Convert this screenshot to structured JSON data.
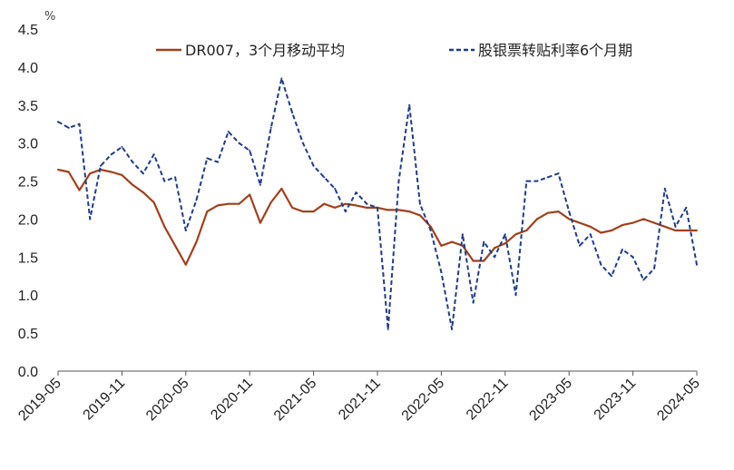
{
  "chart_data": {
    "type": "line",
    "y_unit": "%",
    "ylim": [
      0,
      4.5
    ],
    "y_ticks": [
      "0.0",
      "0.5",
      "1.0",
      "1.5",
      "2.0",
      "2.5",
      "3.0",
      "3.5",
      "4.0",
      "4.5"
    ],
    "x_ticks": [
      "2019-05",
      "2019-11",
      "2020-05",
      "2020-11",
      "2021-05",
      "2021-11",
      "2022-05",
      "2022-11",
      "2023-05",
      "2023-11",
      "2024-05"
    ],
    "xlim": [
      "2019-05",
      "2024-05"
    ],
    "grid": false,
    "legend_position": "top",
    "series": [
      {
        "name": "DR007，3个月移动平均",
        "color": "#a0401b",
        "style": "solid",
        "points": [
          [
            "2019-05",
            2.65
          ],
          [
            "2019-06",
            2.62
          ],
          [
            "2019-07",
            2.38
          ],
          [
            "2019-08",
            2.6
          ],
          [
            "2019-09",
            2.65
          ],
          [
            "2019-10",
            2.62
          ],
          [
            "2019-11",
            2.58
          ],
          [
            "2019-12",
            2.45
          ],
          [
            "2020-01",
            2.35
          ],
          [
            "2020-02",
            2.22
          ],
          [
            "2020-03",
            1.9
          ],
          [
            "2020-04",
            1.65
          ],
          [
            "2020-05",
            1.4
          ],
          [
            "2020-06",
            1.7
          ],
          [
            "2020-07",
            2.1
          ],
          [
            "2020-08",
            2.18
          ],
          [
            "2020-09",
            2.2
          ],
          [
            "2020-10",
            2.2
          ],
          [
            "2020-11",
            2.32
          ],
          [
            "2020-12",
            1.95
          ],
          [
            "2021-01",
            2.22
          ],
          [
            "2021-02",
            2.4
          ],
          [
            "2021-03",
            2.15
          ],
          [
            "2021-04",
            2.1
          ],
          [
            "2021-05",
            2.1
          ],
          [
            "2021-06",
            2.2
          ],
          [
            "2021-07",
            2.15
          ],
          [
            "2021-08",
            2.2
          ],
          [
            "2021-09",
            2.18
          ],
          [
            "2021-10",
            2.15
          ],
          [
            "2021-11",
            2.15
          ],
          [
            "2021-12",
            2.12
          ],
          [
            "2022-01",
            2.12
          ],
          [
            "2022-02",
            2.1
          ],
          [
            "2022-03",
            2.05
          ],
          [
            "2022-04",
            1.9
          ],
          [
            "2022-05",
            1.65
          ],
          [
            "2022-06",
            1.7
          ],
          [
            "2022-07",
            1.65
          ],
          [
            "2022-08",
            1.45
          ],
          [
            "2022-09",
            1.45
          ],
          [
            "2022-10",
            1.62
          ],
          [
            "2022-11",
            1.68
          ],
          [
            "2022-12",
            1.8
          ],
          [
            "2023-01",
            1.85
          ],
          [
            "2023-02",
            2.0
          ],
          [
            "2023-03",
            2.08
          ],
          [
            "2023-04",
            2.1
          ],
          [
            "2023-05",
            2.0
          ],
          [
            "2023-06",
            1.95
          ],
          [
            "2023-07",
            1.9
          ],
          [
            "2023-08",
            1.82
          ],
          [
            "2023-09",
            1.85
          ],
          [
            "2023-10",
            1.92
          ],
          [
            "2023-11",
            1.95
          ],
          [
            "2023-12",
            2.0
          ],
          [
            "2024-01",
            1.95
          ],
          [
            "2024-02",
            1.9
          ],
          [
            "2024-03",
            1.85
          ],
          [
            "2024-04",
            1.85
          ],
          [
            "2024-05",
            1.85
          ]
        ]
      },
      {
        "name": "股银票转贴利率6个月期",
        "color": "#1f3c88",
        "style": "dashed",
        "points": [
          [
            "2019-05",
            3.28
          ],
          [
            "2019-06",
            3.2
          ],
          [
            "2019-07",
            3.25
          ],
          [
            "2019-08",
            2.0
          ],
          [
            "2019-09",
            2.7
          ],
          [
            "2019-10",
            2.85
          ],
          [
            "2019-11",
            2.95
          ],
          [
            "2019-12",
            2.75
          ],
          [
            "2020-01",
            2.6
          ],
          [
            "2020-02",
            2.85
          ],
          [
            "2020-03",
            2.5
          ],
          [
            "2020-04",
            2.55
          ],
          [
            "2020-05",
            1.85
          ],
          [
            "2020-06",
            2.25
          ],
          [
            "2020-07",
            2.8
          ],
          [
            "2020-08",
            2.75
          ],
          [
            "2020-09",
            3.15
          ],
          [
            "2020-10",
            3.0
          ],
          [
            "2020-11",
            2.9
          ],
          [
            "2020-12",
            2.45
          ],
          [
            "2021-01",
            3.2
          ],
          [
            "2021-02",
            3.85
          ],
          [
            "2021-03",
            3.4
          ],
          [
            "2021-04",
            3.0
          ],
          [
            "2021-05",
            2.7
          ],
          [
            "2021-06",
            2.55
          ],
          [
            "2021-07",
            2.4
          ],
          [
            "2021-08",
            2.1
          ],
          [
            "2021-09",
            2.35
          ],
          [
            "2021-10",
            2.2
          ],
          [
            "2021-11",
            2.15
          ],
          [
            "2021-12",
            0.55
          ],
          [
            "2022-01",
            2.5
          ],
          [
            "2022-02",
            3.5
          ],
          [
            "2022-03",
            2.2
          ],
          [
            "2022-04",
            1.85
          ],
          [
            "2022-05",
            1.3
          ],
          [
            "2022-06",
            0.55
          ],
          [
            "2022-07",
            1.8
          ],
          [
            "2022-08",
            0.9
          ],
          [
            "2022-09",
            1.7
          ],
          [
            "2022-10",
            1.5
          ],
          [
            "2022-11",
            1.8
          ],
          [
            "2022-12",
            1.0
          ],
          [
            "2023-01",
            2.5
          ],
          [
            "2023-02",
            2.5
          ],
          [
            "2023-03",
            2.55
          ],
          [
            "2023-04",
            2.6
          ],
          [
            "2023-05",
            2.1
          ],
          [
            "2023-06",
            1.65
          ],
          [
            "2023-07",
            1.8
          ],
          [
            "2023-08",
            1.4
          ],
          [
            "2023-09",
            1.25
          ],
          [
            "2023-10",
            1.6
          ],
          [
            "2023-11",
            1.5
          ],
          [
            "2023-12",
            1.2
          ],
          [
            "2024-01",
            1.35
          ],
          [
            "2024-02",
            2.4
          ],
          [
            "2024-03",
            1.9
          ],
          [
            "2024-04",
            2.15
          ],
          [
            "2024-05",
            1.4
          ]
        ]
      }
    ]
  }
}
